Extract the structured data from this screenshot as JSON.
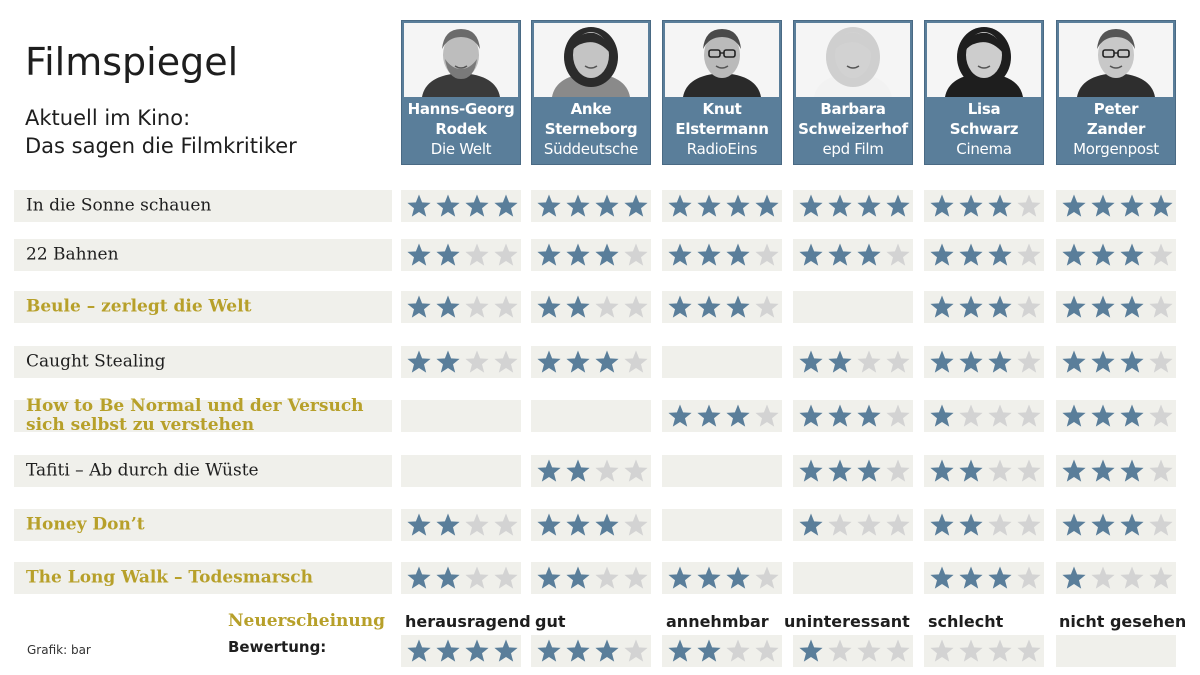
{
  "header": {
    "title": "Filmspiegel",
    "subtitle_line1": "Aktuell im Kino:",
    "subtitle_line2": "Das sagen die Filmkritiker"
  },
  "colors": {
    "star_filled": "#5a7e9a",
    "star_empty": "#d3d3d3",
    "new_release": "#b7a02a",
    "cell_bg": "#f0f0eb",
    "critic_bg": "#5a7e9a"
  },
  "critics": [
    {
      "name_line1": "Hanns-Georg",
      "name_line2": "Rodek",
      "outlet": "Die Welt",
      "photo_icon": "critic-photo"
    },
    {
      "name_line1": "Anke",
      "name_line2": "Sterneborg",
      "outlet": "Süddeutsche",
      "photo_icon": "critic-photo"
    },
    {
      "name_line1": "Knut",
      "name_line2": "Elstermann",
      "outlet": "RadioEins",
      "photo_icon": "critic-photo"
    },
    {
      "name_line1": "Barbara",
      "name_line2": "Schweizerhof",
      "outlet": "epd Film",
      "photo_icon": "critic-photo"
    },
    {
      "name_line1": "Lisa",
      "name_line2": "Schwarz",
      "outlet": "Cinema",
      "photo_icon": "critic-photo"
    },
    {
      "name_line1": "Peter",
      "name_line2": "Zander",
      "outlet": "Morgenpost",
      "photo_icon": "critic-photo"
    }
  ],
  "films": [
    {
      "title_line1": "In die Sonne schauen",
      "title_line2": "",
      "new_release": false,
      "ratings": [
        4,
        4,
        4,
        4,
        3,
        4
      ]
    },
    {
      "title_line1": "22 Bahnen",
      "title_line2": "",
      "new_release": false,
      "ratings": [
        2,
        3,
        3,
        3,
        3,
        3
      ]
    },
    {
      "title_line1": "Beule – zerlegt die Welt",
      "title_line2": "",
      "new_release": true,
      "ratings": [
        2,
        2,
        3,
        null,
        3,
        3
      ]
    },
    {
      "title_line1": "Caught Stealing",
      "title_line2": "",
      "new_release": false,
      "ratings": [
        2,
        3,
        null,
        2,
        3,
        3
      ]
    },
    {
      "title_line1": "How to Be Normal und der Versuch",
      "title_line2": "sich selbst zu verstehen",
      "new_release": true,
      "ratings": [
        null,
        null,
        3,
        3,
        1,
        3
      ]
    },
    {
      "title_line1": "Tafiti – Ab durch die Wüste",
      "title_line2": "",
      "new_release": false,
      "ratings": [
        null,
        2,
        null,
        3,
        2,
        3
      ]
    },
    {
      "title_line1": "Honey Don’t",
      "title_line2": "",
      "new_release": true,
      "ratings": [
        2,
        3,
        null,
        1,
        2,
        3
      ]
    },
    {
      "title_line1": "The Long Walk – Todesmarsch",
      "title_line2": "",
      "new_release": true,
      "ratings": [
        2,
        2,
        3,
        null,
        3,
        1
      ]
    }
  ],
  "legend": {
    "new_release_label": "Neuerscheinung",
    "rating_label": "Bewertung:",
    "items": [
      {
        "label": "herausragend",
        "stars": 4
      },
      {
        "label": "gut",
        "stars": 3
      },
      {
        "label": "annehmbar",
        "stars": 2
      },
      {
        "label": "uninteressant",
        "stars": 1
      },
      {
        "label": "schlecht",
        "stars": 0
      },
      {
        "label": "nicht gesehen",
        "stars": null
      }
    ]
  },
  "credit": "Grafik: bar"
}
